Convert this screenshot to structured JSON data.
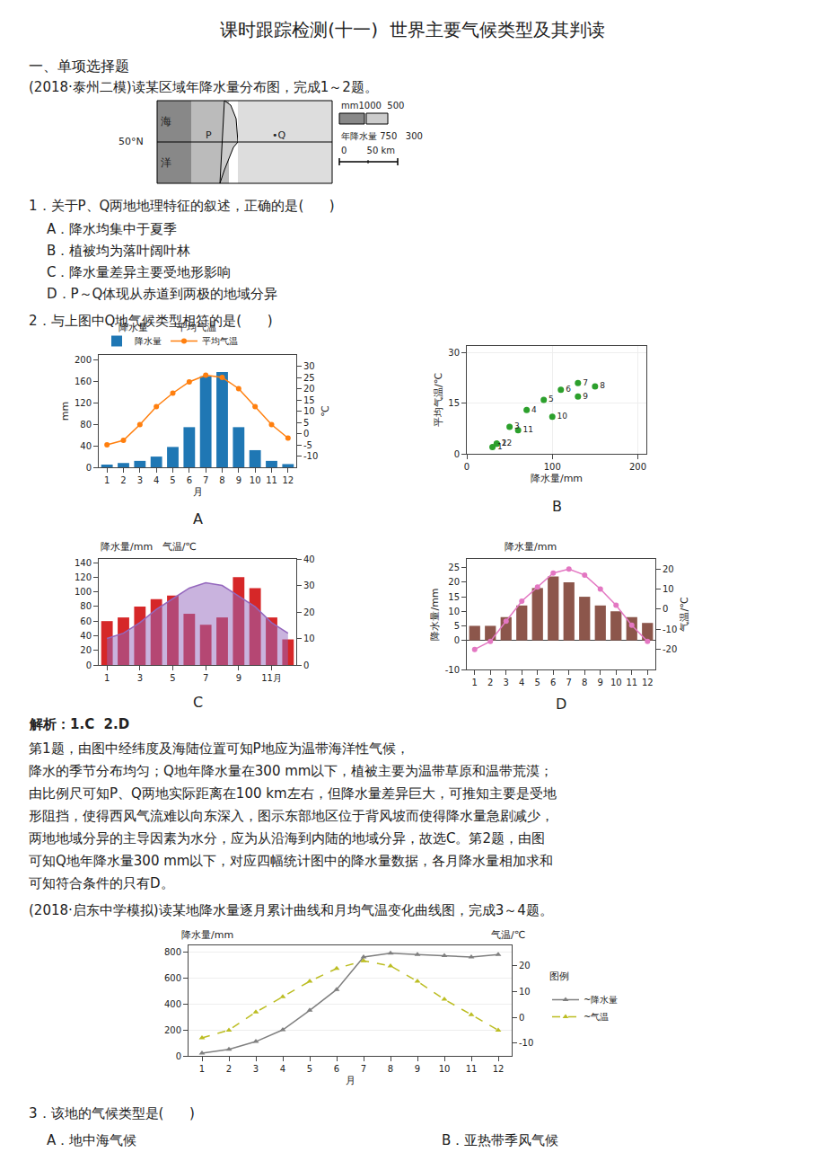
{
  "title": "课时跟踪检测(十一)  世界主要气候类型及其判读",
  "annotations": [
    "一、单项选择题",
    "(2018·泰州二模)读某区域年降水量分布图，完成1～2题。",
    "50°N",
    "海",
    "洋",
    "P",
    "•Q",
    "mm1000  500",
    "年降水量 750   300",
    "0       50 km",
    "1．关于P、Q两地地理特征的叙述，正确的是(      )",
    "A．降水均集中于夏季",
    "B．植被均为落叶阔叶林",
    "C．降水量差异主要受地形影响",
    "D．P～Q体现从赤道到两极的地域分异",
    "2．与上图中Q地气候类型相符的是(      )",
    "解析：1.C  2.D",
    "第1题，由图中经纬度及海陆位置可知P地应为温带海洋性气候，",
    "降水的季节分布均匀；Q地年降水量在300 mm以下，植被主要为温带草原和温带荒漠；",
    "由比例尺可知P、Q两地实际距离在100 km左右，但降水量差异巨大，可推知主要是受地",
    "形阻挡，使得西风气流难以向东深入，图示东部地区位于背风坡而使得降水量急剧减少，",
    "两地地域分异的主导因素为水分，应为从沿海到内陆的地域分异，故选C。第2题，由图",
    "可知Q地年降水量300 mm以下，对应四幅统计图中的降水量数据，各月降水量相加求和",
    "可知符合条件的只有D。",
    "(2018·启东中学模拟)读某地降水量逐月累计曲线和月均气温变化曲线图，完成3～4题。",
    "3．该地的气候类型是(      )",
    "A．地中海气候",
    "B．亚热带季风气候"
  ],
  "chart_data": [
    {
      "type": "bar",
      "title": "A",
      "x": [
        1,
        2,
        3,
        4,
        5,
        6,
        7,
        8,
        9,
        10,
        11,
        12
      ],
      "xlim": [
        0.5,
        12.5
      ],
      "xticks": [
        1,
        2,
        3,
        4,
        5,
        6,
        7,
        8,
        9,
        10,
        11,
        12
      ],
      "xlabel": "月",
      "ylabel": "mm",
      "y2label": "℃",
      "ylim": [
        0,
        210
      ],
      "yticks": [
        0,
        40,
        80,
        120,
        160,
        200
      ],
      "y2lim": [
        -15,
        35
      ],
      "y2ticks": [
        -10,
        -5,
        0,
        5,
        10,
        15,
        20,
        25,
        30
      ],
      "grid": false,
      "legend": "upper left",
      "annotations": [
        "降水量",
        "平均气温"
      ],
      "series": [
        {
          "name": "降水量",
          "values": [
            5,
            8,
            12,
            20,
            38,
            75,
            170,
            178,
            75,
            32,
            12,
            6
          ]
        },
        {
          "name": "平均气温",
          "type": "line",
          "marker": "circle",
          "axis": "y2",
          "values": [
            -5,
            -3,
            4,
            12,
            18,
            23,
            26,
            25,
            20,
            12,
            4,
            -2
          ]
        }
      ]
    },
    {
      "type": "scatter",
      "title": "B",
      "x": [
        30,
        35,
        50,
        70,
        90,
        110,
        130,
        150,
        130,
        100,
        60,
        35
      ],
      "xlim": [
        0,
        210
      ],
      "xticks": [
        0,
        100,
        200
      ],
      "ylim": [
        0,
        32
      ],
      "yticks": [
        0,
        15,
        30
      ],
      "xlabel": "降水量/mm",
      "ylabel": "平均气温/℃",
      "grid": true,
      "point_labels": [
        "1",
        "2",
        "3",
        "4",
        "5",
        "6",
        "7",
        "8",
        "9",
        "10",
        "11",
        "12"
      ],
      "series": [
        {
          "marker": "circle",
          "values": [
            2,
            3,
            8,
            13,
            16,
            19,
            21,
            20,
            17,
            11,
            7,
            3
          ]
        }
      ]
    },
    {
      "type": "bar",
      "title": "C",
      "x": [
        1,
        2,
        3,
        4,
        5,
        6,
        7,
        8,
        9,
        10,
        11,
        12
      ],
      "xlim": [
        0.5,
        12.5
      ],
      "xticks": [
        1,
        3,
        5,
        7,
        9,
        {
          "value": 11,
          "label": "11月"
        }
      ],
      "ylim": [
        0,
        145
      ],
      "yticks": [
        0,
        20,
        40,
        60,
        80,
        100,
        120,
        140
      ],
      "y2lim": [
        0,
        40
      ],
      "y2ticks": [
        0,
        10,
        20,
        30,
        40
      ],
      "grid": false,
      "annotations": [
        "降水量/mm   气温/℃"
      ],
      "series": [
        {
          "values": [
            60,
            65,
            80,
            90,
            95,
            70,
            55,
            65,
            120,
            105,
            65,
            35
          ]
        },
        {
          "type": "area",
          "axis": "y2",
          "values": [
            10,
            12,
            16,
            21,
            25,
            29,
            31,
            30,
            26,
            22,
            16,
            12
          ]
        }
      ]
    },
    {
      "type": "bar",
      "title": "D",
      "x": [
        1,
        2,
        3,
        4,
        5,
        6,
        7,
        8,
        9,
        10,
        11,
        12
      ],
      "xlim": [
        0.5,
        12.5
      ],
      "xticks": [
        1,
        2,
        3,
        4,
        5,
        6,
        7,
        8,
        9,
        10,
        11,
        12
      ],
      "ylabel": "降水量/mm",
      "y2label": "气温/℃",
      "ylim": [
        -10,
        28
      ],
      "yticks": [
        -10,
        0,
        5,
        10,
        15,
        20,
        25
      ],
      "y2lim": [
        -30,
        25
      ],
      "y2ticks": [
        -20,
        -10,
        0,
        10,
        20
      ],
      "grid": false,
      "annotations": [
        "降水量/mm"
      ],
      "series": [
        {
          "values": [
            5,
            5,
            8,
            12,
            18,
            22,
            20,
            15,
            12,
            10,
            8,
            6
          ]
        },
        {
          "type": "line",
          "marker": "circle",
          "axis": "y2",
          "values": [
            -20,
            -16,
            -6,
            4,
            11,
            18,
            20,
            17,
            10,
            2,
            -8,
            -16
          ]
        }
      ]
    },
    {
      "type": "line",
      "x": [
        1,
        2,
        3,
        4,
        5,
        6,
        7,
        8,
        9,
        10,
        11,
        12
      ],
      "xlim": [
        0.5,
        12.5
      ],
      "xticks": [
        1,
        2,
        3,
        4,
        5,
        6,
        7,
        8,
        9,
        10,
        11,
        12
      ],
      "xlabel": "月",
      "ylim": [
        0,
        850
      ],
      "yticks": [
        0,
        200,
        400,
        600,
        800
      ],
      "y2lim": [
        -15,
        28
      ],
      "y2ticks": [
        -10,
        0,
        10,
        20
      ],
      "grid": "y",
      "legend": "right",
      "annotations": [
        "降水量/mm",
        "气温/℃",
        "图例"
      ],
      "series": [
        {
          "name": "~降水量",
          "marker": "triangle-up",
          "line_style": "solid",
          "values": [
            20,
            50,
            110,
            200,
            350,
            510,
            760,
            790,
            780,
            770,
            760,
            780
          ]
        },
        {
          "name": "~气温",
          "marker": "triangle-up",
          "line_style": "dash",
          "axis": "y2",
          "values": [
            -8,
            -5,
            2,
            8,
            14,
            19,
            22,
            20,
            14,
            7,
            1,
            -5
          ]
        }
      ]
    }
  ]
}
